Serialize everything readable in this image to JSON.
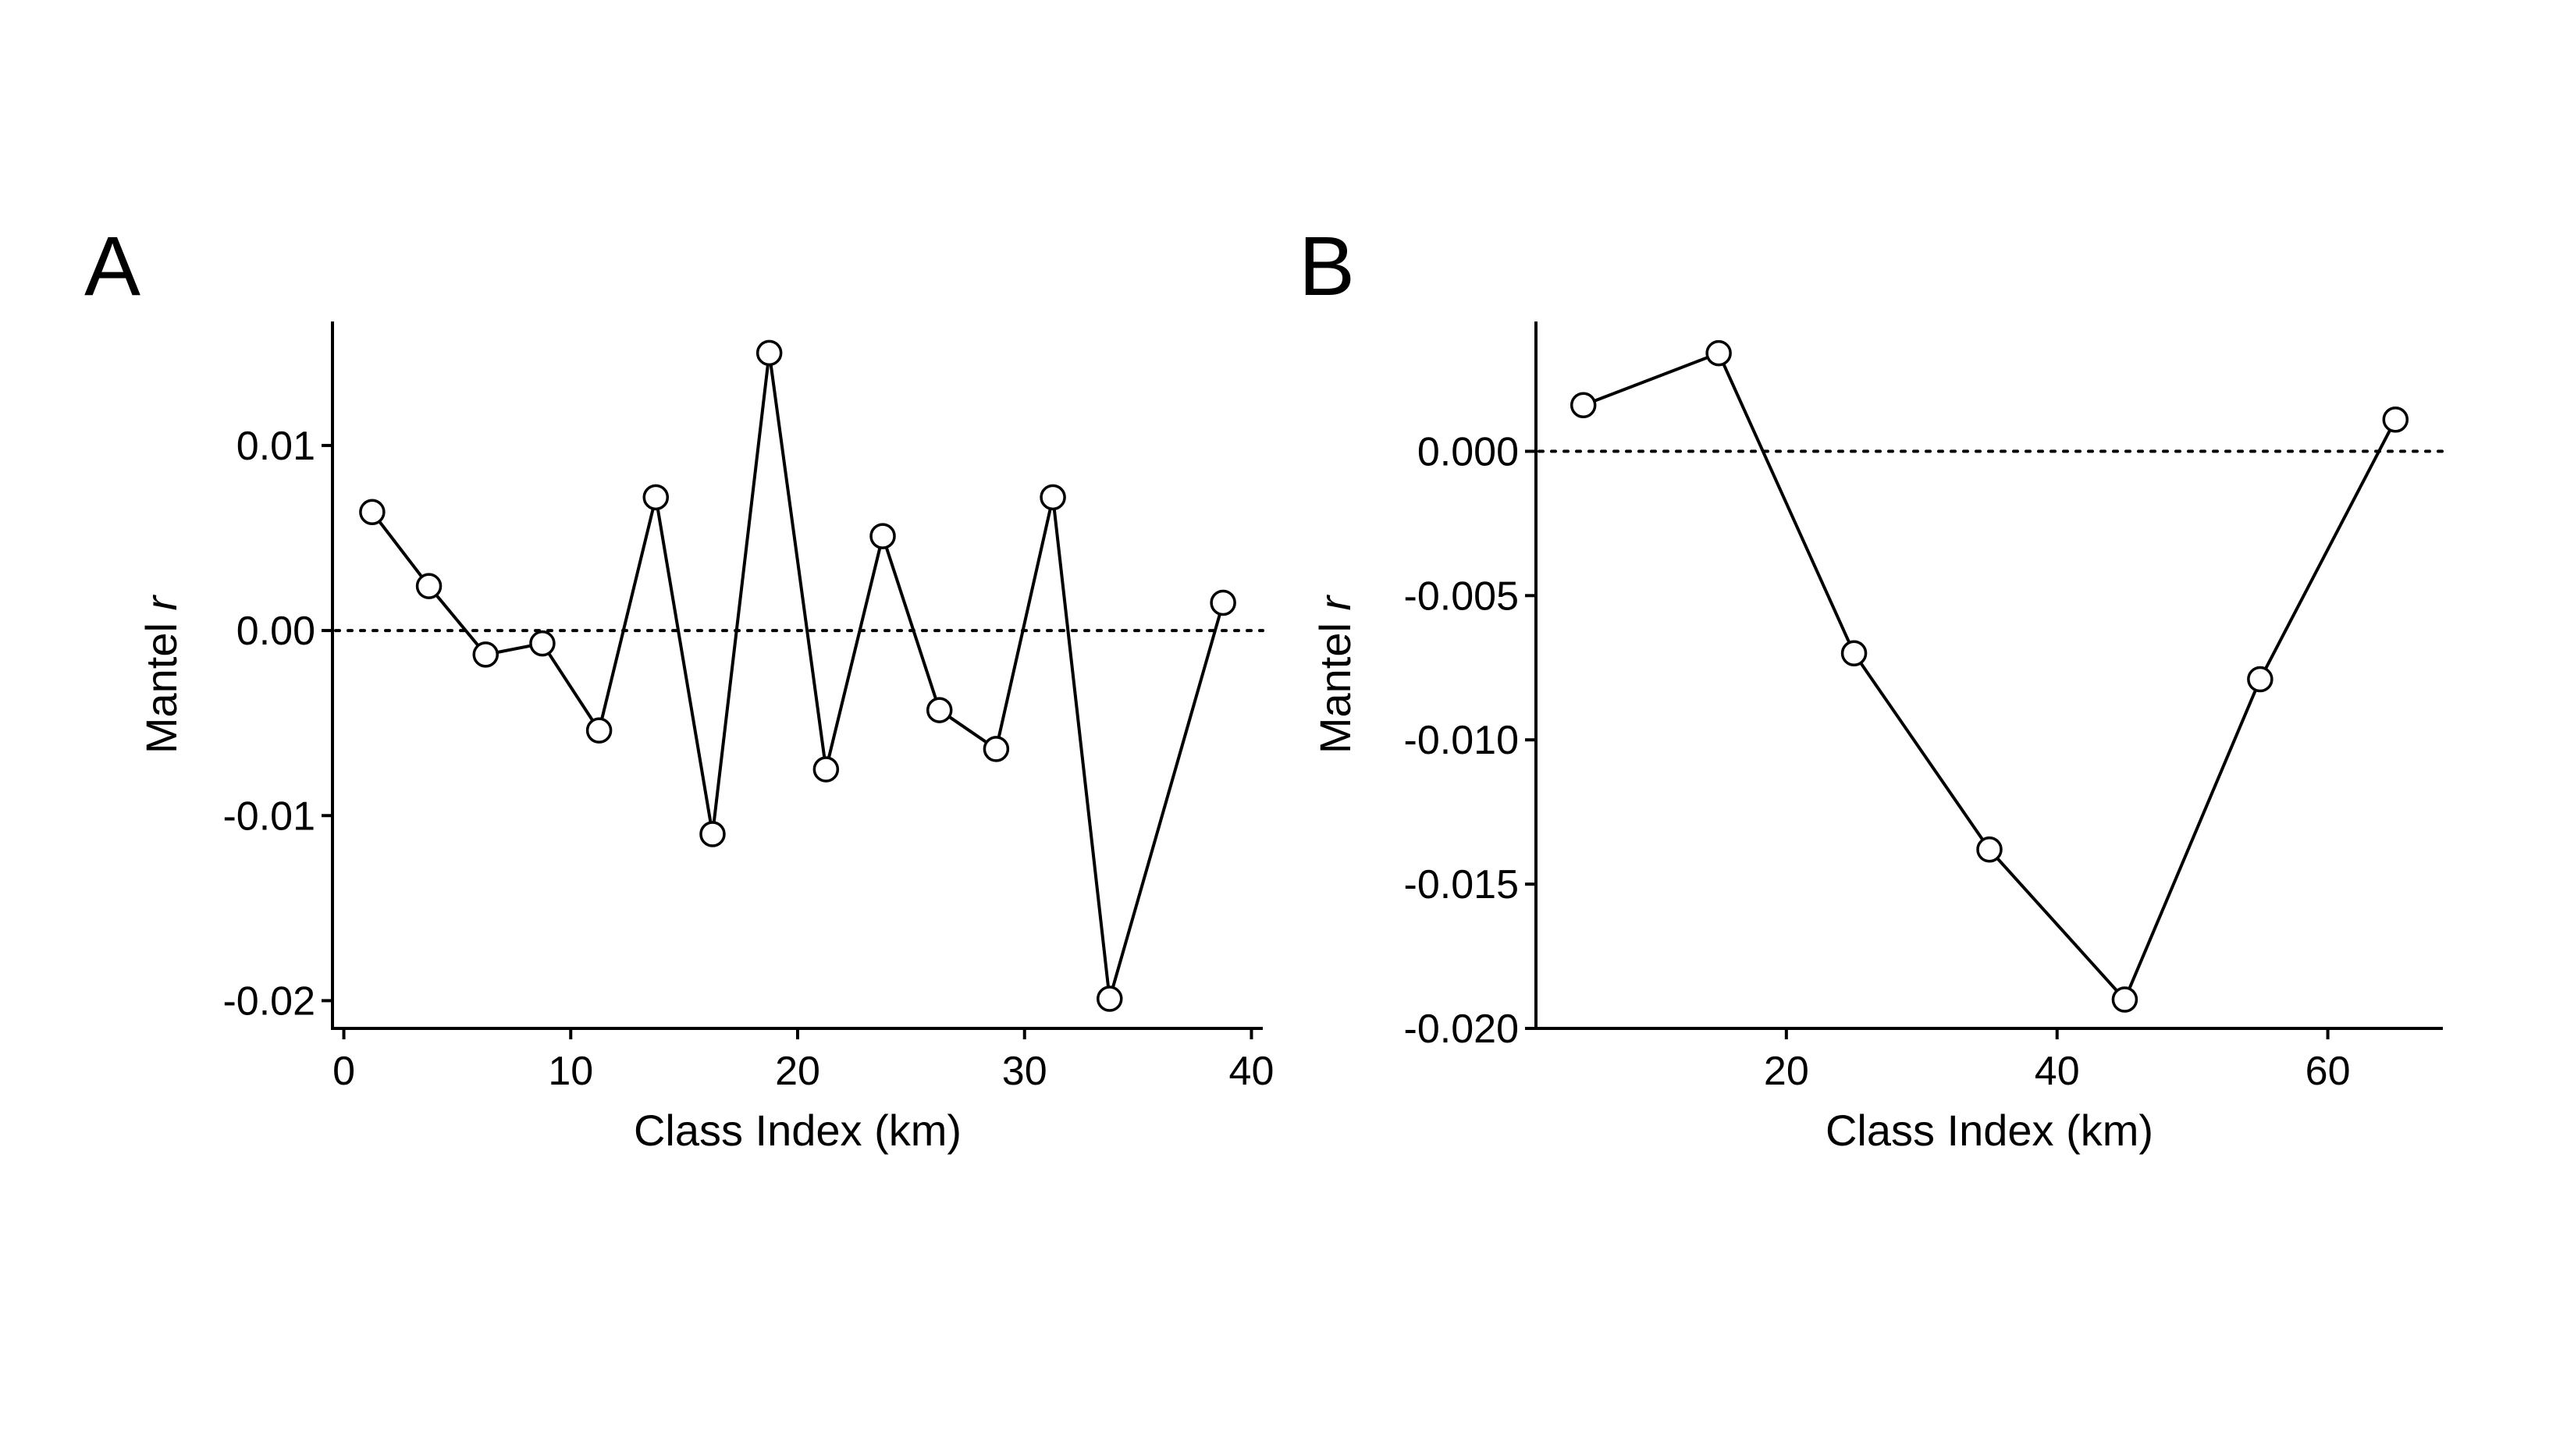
{
  "chart_data": [
    {
      "panel_label": "A",
      "type": "line",
      "xlabel": "Class Index (km)",
      "ylabel_main": "Mantel ",
      "ylabel_italic": "r",
      "xlim": [
        -0.5,
        40.5
      ],
      "ylim": [
        -0.0215,
        0.0167
      ],
      "xticks": [
        0,
        10,
        20,
        30,
        40
      ],
      "xtick_labels": [
        "0",
        "10",
        "20",
        "30",
        "40"
      ],
      "yticks": [
        0.01,
        0.0,
        -0.01,
        -0.02
      ],
      "ytick_labels": [
        "0.01",
        "0.00",
        "-0.01",
        "-0.02"
      ],
      "reference_line_y": 0,
      "series": [
        {
          "x": [
            1.25,
            3.75,
            6.25,
            8.75,
            11.25,
            13.75,
            16.25,
            18.75,
            21.25,
            23.75,
            26.25,
            28.75,
            31.25,
            33.75,
            38.75
          ],
          "y": [
            0.0064,
            0.0024,
            -0.0013,
            -0.0007,
            -0.0054,
            0.0072,
            -0.011,
            0.015,
            -0.0075,
            0.0051,
            -0.0043,
            -0.0064,
            0.0072,
            -0.0199,
            0.0015
          ]
        }
      ],
      "grid": false
    },
    {
      "panel_label": "B",
      "type": "line",
      "xlabel": "Class Index (km)",
      "ylabel_main": "Mantel ",
      "ylabel_italic": "r",
      "xlim": [
        1.5,
        68.5
      ],
      "ylim": [
        -0.02,
        0.0045
      ],
      "xticks": [
        20,
        40,
        60
      ],
      "xtick_labels": [
        "20",
        "40",
        "60"
      ],
      "yticks": [
        0.0,
        -0.005,
        -0.01,
        -0.015,
        -0.02
      ],
      "ytick_labels": [
        "0.000",
        "-0.005",
        "-0.010",
        "-0.015",
        "-0.020"
      ],
      "reference_line_y": 0,
      "series": [
        {
          "x": [
            5,
            15,
            25,
            35,
            45,
            55,
            65
          ],
          "y": [
            0.0016,
            0.0034,
            -0.007,
            -0.0138,
            -0.019,
            -0.0079,
            0.0011
          ]
        }
      ],
      "grid": false
    }
  ]
}
